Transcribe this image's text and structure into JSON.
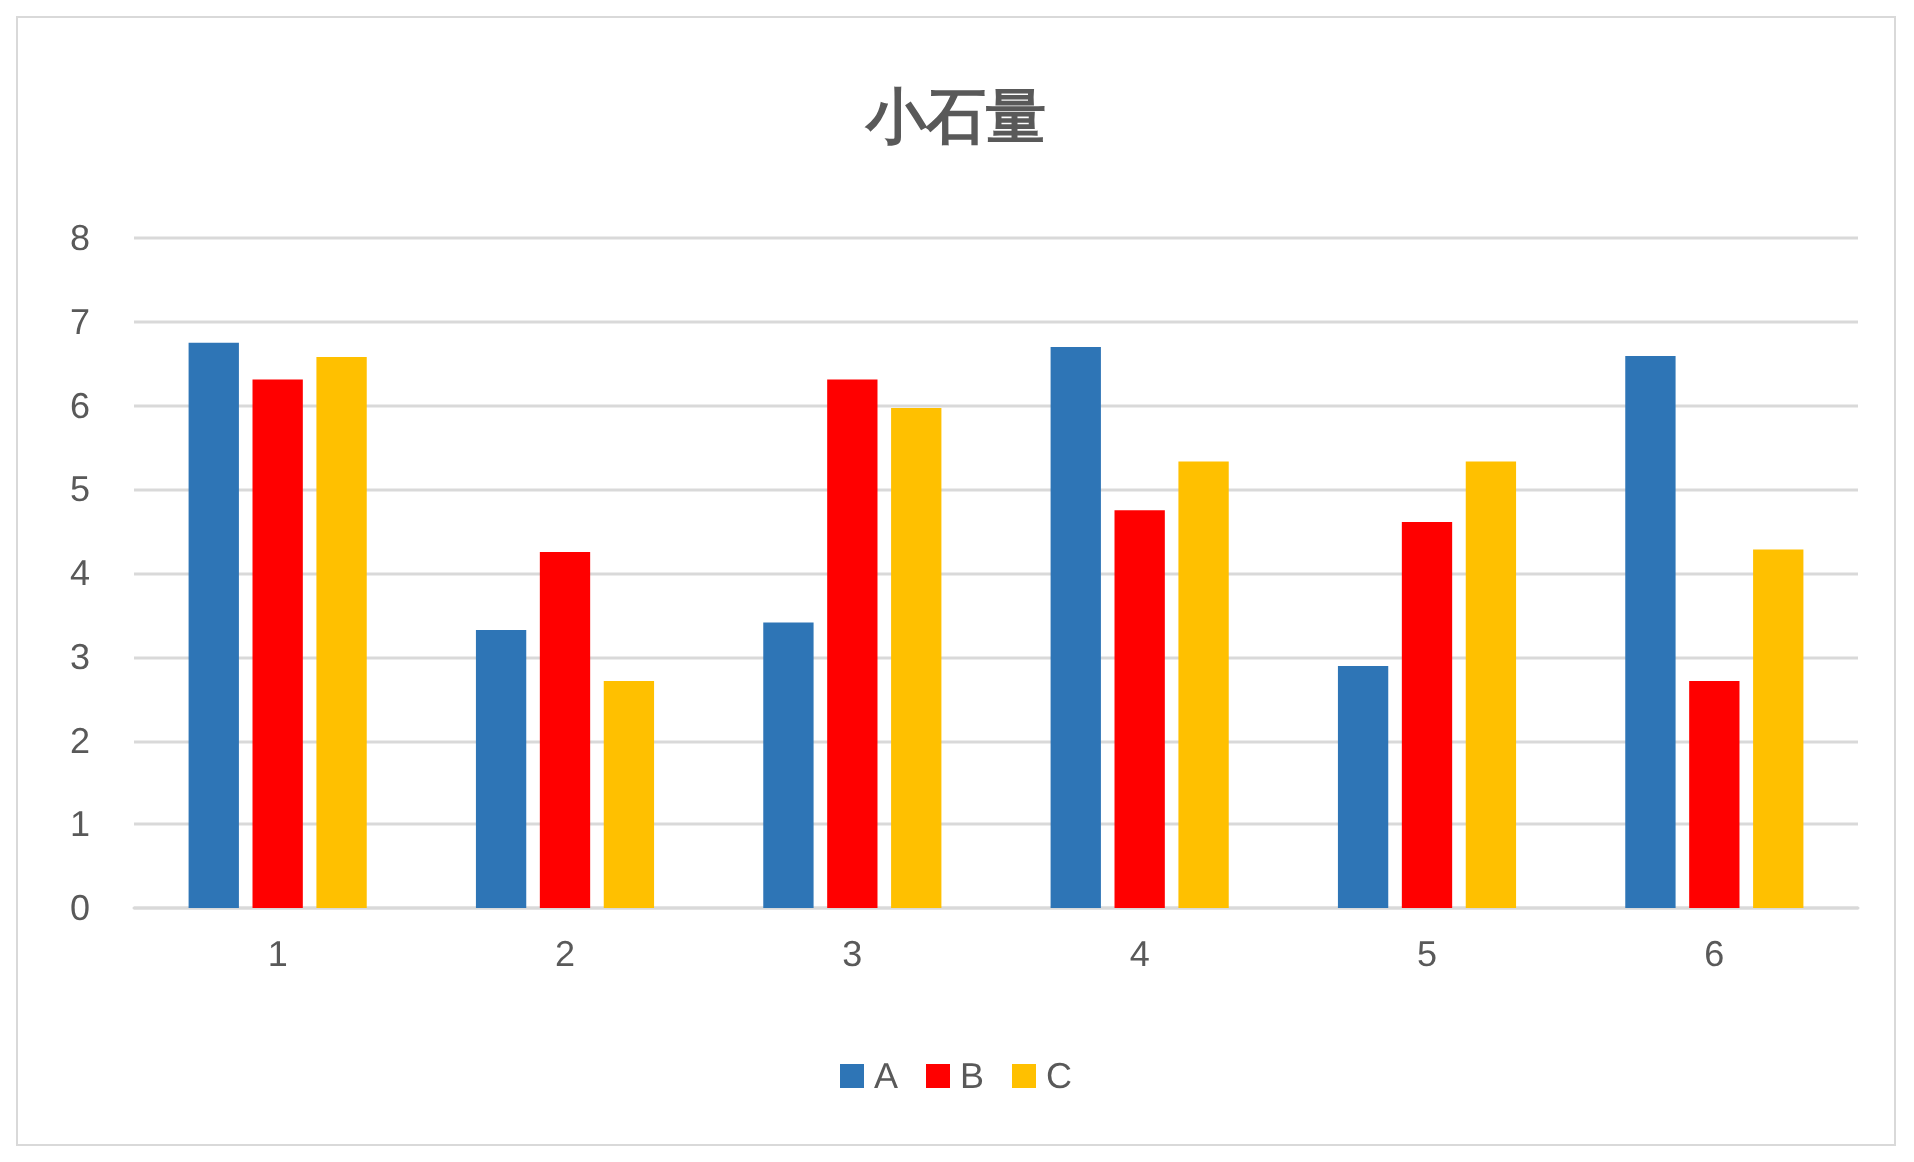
{
  "chart_data": {
    "type": "bar",
    "title": "小石量",
    "categories": [
      "1",
      "2",
      "3",
      "4",
      "5",
      "6"
    ],
    "series": [
      {
        "name": "A",
        "color": "#2e75b6",
        "values": [
          6.75,
          3.32,
          3.41,
          6.7,
          2.89,
          6.59
        ]
      },
      {
        "name": "B",
        "color": "#ff0000",
        "values": [
          6.31,
          4.25,
          6.31,
          4.75,
          4.61,
          2.71
        ]
      },
      {
        "name": "C",
        "color": "#ffc000",
        "values": [
          6.58,
          2.71,
          5.97,
          5.33,
          5.33,
          4.28
        ]
      }
    ],
    "ylim": [
      0,
      8
    ],
    "yticks": [
      0,
      1,
      2,
      3,
      4,
      5,
      6,
      7,
      8
    ],
    "grid": "y",
    "legend": "bottom"
  }
}
